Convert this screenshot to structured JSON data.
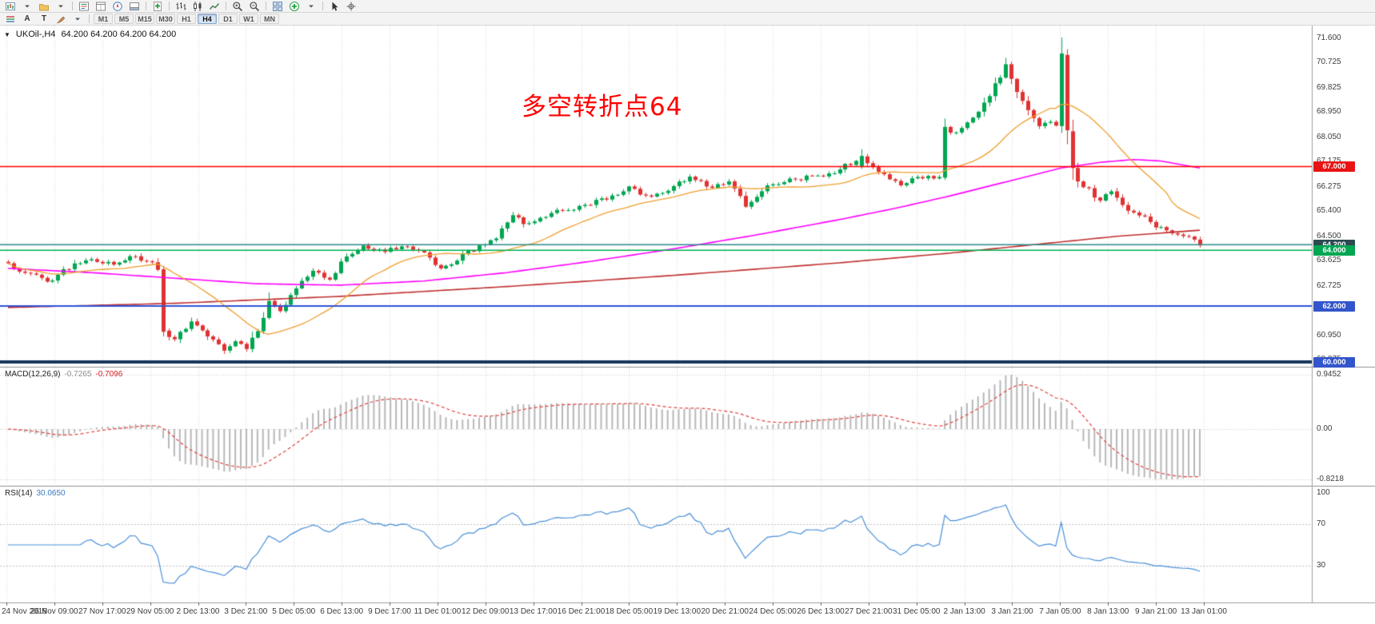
{
  "toolbar": {
    "row1": [
      {
        "name": "new-chart",
        "icon": "chart-new"
      },
      {
        "name": "new-chart-dropdown",
        "icon": "caret"
      },
      {
        "name": "profiles",
        "icon": "profiles"
      },
      {
        "name": "profiles-dropdown",
        "icon": "caret"
      },
      "sep",
      {
        "name": "market-watch",
        "icon": "market-watch"
      },
      {
        "name": "data-window",
        "icon": "data-window"
      },
      {
        "name": "navigator",
        "icon": "navigator"
      },
      {
        "name": "terminal",
        "icon": "terminal"
      },
      "sep",
      {
        "name": "new-order",
        "icon": "new-order"
      },
      "sep",
      {
        "name": "chart-bars",
        "icon": "bars"
      },
      {
        "name": "chart-candlesticks",
        "icon": "candles"
      },
      {
        "name": "chart-line",
        "icon": "line"
      },
      "sep",
      {
        "name": "zoom-in",
        "icon": "zoom-in"
      },
      {
        "name": "zoom-out",
        "icon": "zoom-out"
      },
      "sep",
      {
        "name": "tile-windows",
        "icon": "tile"
      },
      {
        "name": "indicators",
        "icon": "indicators"
      },
      {
        "name": "indicators-dropdown",
        "icon": "caret"
      },
      "sep",
      {
        "name": "cursor-tool",
        "icon": "cursor"
      },
      {
        "name": "crosshair-tool",
        "icon": "crosshair"
      }
    ],
    "row2_icons": [
      {
        "name": "objects-lines",
        "icon": "lines-stack"
      },
      {
        "name": "text-annotation",
        "text": "A"
      },
      {
        "name": "text-object",
        "text": "T"
      },
      {
        "name": "draw-brush",
        "icon": "brush"
      },
      {
        "name": "draw-dropdown",
        "icon": "caret"
      }
    ],
    "timeframes": {
      "items": [
        "M1",
        "M5",
        "M15",
        "M30",
        "H1",
        "H4",
        "D1",
        "W1",
        "MN"
      ],
      "active": "H4"
    }
  },
  "chart": {
    "expander_glyph": "▼",
    "symbol_period_label": "UKOil-,H4",
    "ohlc_label": "64.200 64.200 64.200 64.200",
    "annotation": {
      "text": "多空转折点64",
      "color": "#ff0000"
    },
    "price_axis_ticks": [
      "71.600",
      "70.725",
      "69.825",
      "68.950",
      "68.050",
      "67.175",
      "66.275",
      "65.400",
      "64.500",
      "63.625",
      "62.725",
      "61.850",
      "60.950",
      "60.075"
    ],
    "price_badges": [
      {
        "text": "67.000",
        "price": 67.0,
        "bg": "#e81414"
      },
      {
        "text": "64.200",
        "price": 64.2,
        "bg": "#2d4a52"
      },
      {
        "text": "64.000",
        "price": 64.0,
        "bg": "#00a651"
      },
      {
        "text": "62.000",
        "price": 62.0,
        "bg": "#3355cc"
      },
      {
        "text": "60.000",
        "price": 60.0,
        "bg": "#3355cc"
      }
    ]
  },
  "macd": {
    "label": "MACD(12,26,9)",
    "value_main": "-0.7265",
    "value_signal": "-0.7096",
    "scale": [
      "0.9452",
      "0.00",
      "-0.8218"
    ]
  },
  "rsi": {
    "label": "RSI(14)",
    "value": "30.0650",
    "scale": [
      "100",
      "70",
      "30"
    ],
    "levels": [
      70,
      30
    ]
  },
  "time_axis": {
    "labels": [
      "24 Nov 2019",
      "26 Nov 09:00",
      "27 Nov 17:00",
      "29 Nov 05:00",
      "2 Dec 13:00",
      "3 Dec 21:00",
      "5 Dec 05:00",
      "6 Dec 13:00",
      "9 Dec 17:00",
      "11 Dec 01:00",
      "12 Dec 09:00",
      "13 Dec 17:00",
      "16 Dec 21:00",
      "18 Dec 05:00",
      "19 Dec 13:00",
      "20 Dec 21:00",
      "24 Dec 05:00",
      "26 Dec 13:00",
      "27 Dec 21:00",
      "31 Dec 05:00",
      "2 Jan 13:00",
      "3 Jan 21:00",
      "7 Jan 05:00",
      "8 Jan 13:00",
      "9 Jan 21:00",
      "13 Jan 01:00"
    ]
  },
  "chart_data": {
    "type": "candlestick",
    "symbol": "UKOil-",
    "timeframe": "H4",
    "current_ohlc": [
      64.2,
      64.2,
      64.2,
      64.2
    ],
    "price_axis": {
      "min": 60.0,
      "max": 72.05,
      "ticks": [
        71.6,
        70.725,
        69.825,
        68.95,
        68.05,
        67.175,
        66.275,
        65.4,
        64.5,
        63.625,
        62.725,
        61.85,
        60.95,
        60.075
      ]
    },
    "candles": {
      "count": 216,
      "noise_amp": 0.09,
      "seed": 123456,
      "close_waypoints": [
        [
          0,
          63.45
        ],
        [
          4,
          63.2
        ],
        [
          7,
          62.8
        ],
        [
          10,
          63.3
        ],
        [
          14,
          63.7
        ],
        [
          18,
          63.5
        ],
        [
          22,
          63.75
        ],
        [
          26,
          63.55
        ],
        [
          27,
          63.35
        ],
        [
          28,
          61.1
        ],
        [
          30,
          60.8
        ],
        [
          33,
          61.4
        ],
        [
          36,
          61.0
        ],
        [
          39,
          60.45
        ],
        [
          41,
          60.7
        ],
        [
          43,
          60.5
        ],
        [
          45,
          61.1
        ],
        [
          47,
          62.2
        ],
        [
          49,
          61.8
        ],
        [
          52,
          62.6
        ],
        [
          55,
          63.3
        ],
        [
          58,
          63.0
        ],
        [
          61,
          63.8
        ],
        [
          64,
          64.1
        ],
        [
          68,
          64.0
        ],
        [
          72,
          64.15
        ],
        [
          75,
          63.9
        ],
        [
          78,
          63.35
        ],
        [
          81,
          63.7
        ],
        [
          85,
          64.1
        ],
        [
          88,
          64.5
        ],
        [
          91,
          65.3
        ],
        [
          93,
          64.9
        ],
        [
          96,
          65.1
        ],
        [
          100,
          65.45
        ],
        [
          104,
          65.6
        ],
        [
          108,
          65.9
        ],
        [
          112,
          66.25
        ],
        [
          115,
          65.9
        ],
        [
          118,
          66.1
        ],
        [
          121,
          66.45
        ],
        [
          124,
          66.6
        ],
        [
          127,
          66.25
        ],
        [
          130,
          66.5
        ],
        [
          133,
          65.6
        ],
        [
          136,
          66.2
        ],
        [
          140,
          66.45
        ],
        [
          144,
          66.6
        ],
        [
          148,
          66.75
        ],
        [
          152,
          67.1
        ],
        [
          154,
          67.4
        ],
        [
          156,
          67.0
        ],
        [
          159,
          66.6
        ],
        [
          161,
          66.35
        ],
        [
          164,
          66.7
        ],
        [
          167,
          66.6
        ],
        [
          168,
          66.55
        ],
        [
          169,
          68.4
        ],
        [
          171,
          68.2
        ],
        [
          173,
          68.6
        ],
        [
          175,
          69.0
        ],
        [
          177,
          69.6
        ],
        [
          179,
          70.2
        ],
        [
          180,
          70.6
        ],
        [
          181,
          70.2
        ],
        [
          183,
          69.3
        ],
        [
          185,
          68.7
        ],
        [
          186,
          68.4
        ],
        [
          188,
          68.6
        ],
        [
          189,
          68.5
        ],
        [
          190,
          71.0
        ],
        [
          191,
          68.3
        ],
        [
          192,
          67.0
        ],
        [
          193,
          66.4
        ],
        [
          195,
          66.15
        ],
        [
          197,
          65.8
        ],
        [
          199,
          66.05
        ],
        [
          201,
          65.6
        ],
        [
          203,
          65.4
        ],
        [
          205,
          65.15
        ],
        [
          207,
          64.9
        ],
        [
          209,
          64.75
        ],
        [
          211,
          64.6
        ],
        [
          213,
          64.45
        ],
        [
          215,
          64.2
        ]
      ],
      "overrides": {
        "28": {
          "o": 63.32,
          "h": 63.44,
          "l": 60.92,
          "c": 61.08
        },
        "154": {
          "o": 67.02,
          "h": 67.62,
          "l": 66.92,
          "c": 67.38
        },
        "169": {
          "o": 66.6,
          "h": 68.72,
          "l": 66.52,
          "c": 68.42
        },
        "190": {
          "o": 68.45,
          "h": 71.62,
          "l": 68.2,
          "c": 71.05
        },
        "191": {
          "o": 71.0,
          "h": 71.2,
          "l": 67.8,
          "c": 68.3
        }
      }
    },
    "moving_averages": [
      {
        "name": "fast-ma",
        "color": "#ef9f2f",
        "type": "sma",
        "period": 20
      },
      {
        "name": "mid-ma",
        "color": "#ff00ff",
        "type": "waypoints",
        "points": [
          [
            0,
            63.35
          ],
          [
            15,
            63.2
          ],
          [
            30,
            63.0
          ],
          [
            45,
            62.8
          ],
          [
            60,
            62.75
          ],
          [
            75,
            62.9
          ],
          [
            90,
            63.2
          ],
          [
            105,
            63.6
          ],
          [
            120,
            64.05
          ],
          [
            135,
            64.55
          ],
          [
            150,
            65.1
          ],
          [
            160,
            65.5
          ],
          [
            170,
            65.95
          ],
          [
            180,
            66.45
          ],
          [
            190,
            66.95
          ],
          [
            197,
            67.15
          ],
          [
            203,
            67.25
          ],
          [
            208,
            67.2
          ],
          [
            215,
            66.95
          ]
        ]
      },
      {
        "name": "slow-ma",
        "color": "#c03030",
        "type": "waypoints",
        "points": [
          [
            0,
            61.95
          ],
          [
            30,
            62.1
          ],
          [
            60,
            62.35
          ],
          [
            90,
            62.7
          ],
          [
            120,
            63.1
          ],
          [
            150,
            63.55
          ],
          [
            170,
            63.9
          ],
          [
            185,
            64.2
          ],
          [
            200,
            64.5
          ],
          [
            215,
            64.72
          ]
        ]
      }
    ],
    "horizontal_lines": [
      {
        "price": 67.0,
        "color": "#ff0000",
        "width": 1.5,
        "label": "67.000"
      },
      {
        "price": 64.2,
        "color": "#2e8b8b",
        "width": 1.5,
        "label": "64.200"
      },
      {
        "price": 64.0,
        "color": "#00b050",
        "width": 1.5,
        "label": "64.000"
      },
      {
        "price": 62.0,
        "color": "#2f54d9",
        "width": 2,
        "label": "62.000"
      },
      {
        "price": 60.0,
        "color": "#17365d",
        "width": 4,
        "label": "60.000"
      }
    ],
    "indicators": [
      {
        "name": "MACD",
        "params": [
          12,
          26,
          9
        ],
        "current": [
          -0.7265,
          -0.7096
        ],
        "scale_labels": [
          "0.9452",
          "0.00",
          "-0.8218"
        ],
        "histogram_color": "#b8b8b8",
        "signal_color": "#e04040",
        "signal_style": "dashed"
      },
      {
        "name": "RSI",
        "params": [
          14
        ],
        "current": 30.065,
        "scale_labels": [
          "100",
          "70",
          "30"
        ],
        "levels": [
          70,
          30
        ],
        "color": "#4a90d9"
      }
    ]
  }
}
